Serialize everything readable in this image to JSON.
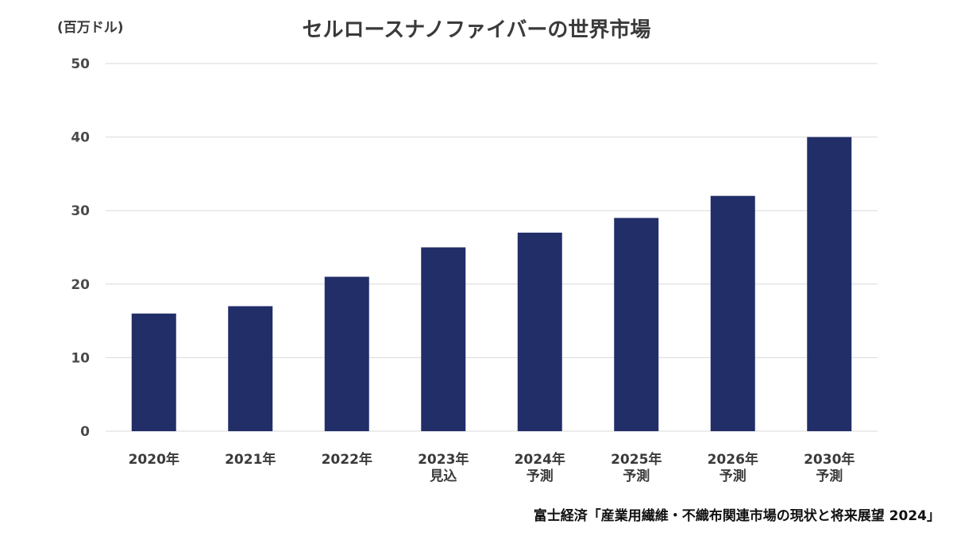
{
  "chart_data": {
    "type": "bar",
    "title": "セルロースナノファイバーの世界市場",
    "unit_label": "(百万ドル)",
    "categories": [
      [
        "2020年"
      ],
      [
        "2021年"
      ],
      [
        "2022年"
      ],
      [
        "2023年",
        "見込"
      ],
      [
        "2024年",
        "予測"
      ],
      [
        "2025年",
        "予測"
      ],
      [
        "2026年",
        "予測"
      ],
      [
        "2030年",
        "予測"
      ]
    ],
    "values": [
      16,
      17,
      21,
      25,
      27,
      29,
      32,
      40
    ],
    "ylim": [
      0,
      50
    ],
    "yticks": [
      "0",
      "10",
      "20",
      "30",
      "40",
      "50"
    ],
    "grid": true,
    "bar_color": "#222e68",
    "source": "富士経済「産業用繊維・不織布関連市場の現状と将来展望 2024」"
  }
}
